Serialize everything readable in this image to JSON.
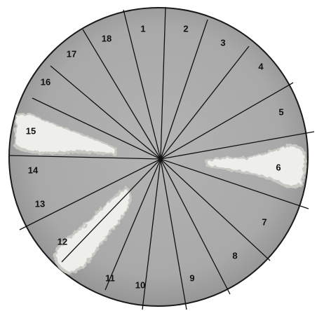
{
  "plate": {
    "sectors": [
      {
        "label": "1"
      },
      {
        "label": "2"
      },
      {
        "label": "3"
      },
      {
        "label": "4"
      },
      {
        "label": "5"
      },
      {
        "label": "6"
      },
      {
        "label": "7"
      },
      {
        "label": "8"
      },
      {
        "label": "9"
      },
      {
        "label": "10"
      },
      {
        "label": "11"
      },
      {
        "label": "12"
      },
      {
        "label": "13"
      },
      {
        "label": "14"
      },
      {
        "label": "15"
      },
      {
        "label": "16"
      },
      {
        "label": "17"
      },
      {
        "label": "18"
      }
    ],
    "colors": {
      "agar": "#a9a9a9",
      "agar_edge": "#8f8f8f",
      "rim": "#1a1a1a",
      "divider": "#111111",
      "colony": "#eeeeea",
      "colony_shadow": "#c9c9c4"
    }
  }
}
